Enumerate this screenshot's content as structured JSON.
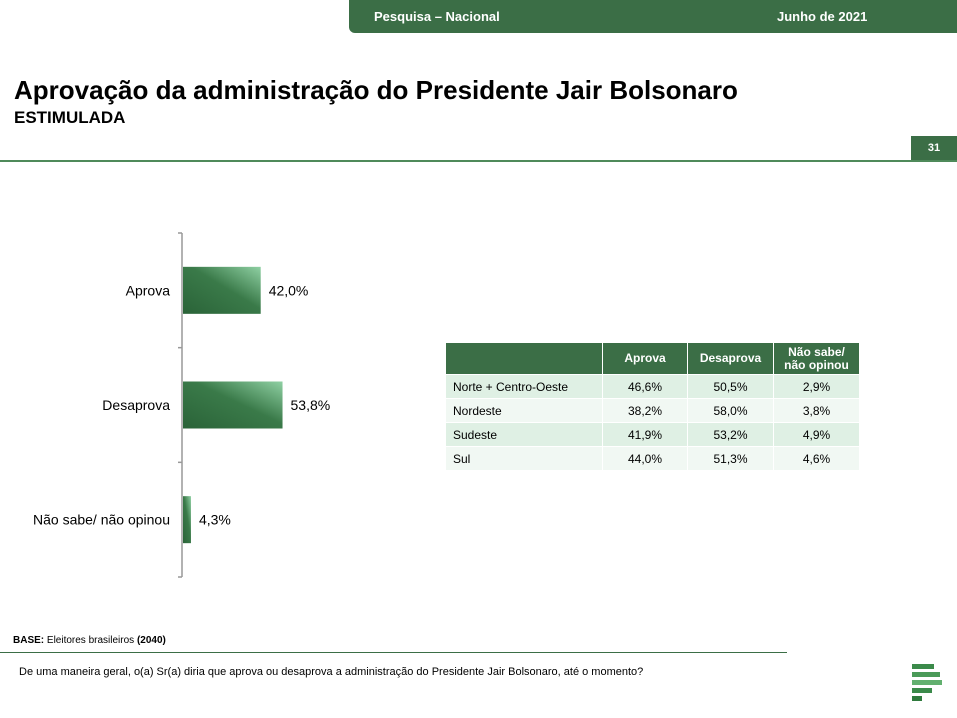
{
  "header": {
    "survey": "Pesquisa – Nacional",
    "date": "Junho de 2021"
  },
  "title": "Aprovação da administração do Presidente Jair Bolsonaro",
  "subtitle": "ESTIMULADA",
  "page_number": "31",
  "chart_data": {
    "type": "bar",
    "orientation": "horizontal",
    "categories": [
      "Aprova",
      "Desaprova",
      "Não sabe/ não opinou"
    ],
    "values": [
      42.0,
      53.8,
      4.3
    ],
    "value_labels": [
      "42,0%",
      "53,8%",
      "4,3%"
    ],
    "xlim": [
      0,
      100
    ],
    "bar_color": "#2f6b3d",
    "bar_highlight": "#7ec796"
  },
  "table": {
    "headers": [
      "",
      "Aprova",
      "Desaprova",
      "Não sabe/ não opinou"
    ],
    "rows": [
      [
        "Norte + Centro-Oeste",
        "46,6%",
        "50,5%",
        "2,9%"
      ],
      [
        "Nordeste",
        "38,2%",
        "58,0%",
        "3,8%"
      ],
      [
        "Sudeste",
        "41,9%",
        "53,2%",
        "4,9%"
      ],
      [
        "Sul",
        "44,0%",
        "51,3%",
        "4,6%"
      ]
    ]
  },
  "base": {
    "label": "BASE:",
    "text": " Eleitores brasileiros ",
    "count": "(2040)"
  },
  "question": "De uma maneira geral, o(a) Sr(a) diria que aprova ou desaprova a administração do Presidente Jair Bolsonaro, até o momento?",
  "colors": {
    "accent": "#3b6e46",
    "row_odd": "#dff0e4",
    "row_even": "#f1f8f3"
  }
}
